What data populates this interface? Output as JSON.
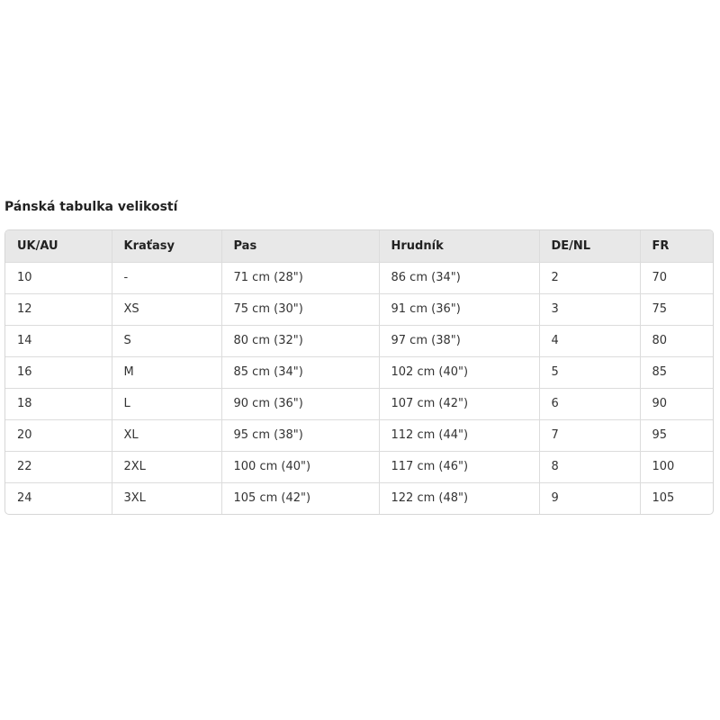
{
  "title": "Pánská tabulka velikostí",
  "headers": [
    "UK/AU",
    "Kraťasy",
    "Pas",
    "Hrudník",
    "DE/NL",
    "FR"
  ],
  "rows": [
    [
      "10",
      "-",
      "71 cm (28\")",
      "86 cm (34\")",
      "2",
      "70"
    ],
    [
      "12",
      "XS",
      "75 cm (30\")",
      "91 cm (36\")",
      "3",
      "75"
    ],
    [
      "14",
      "S",
      "80 cm (32\")",
      "97 cm (38\")",
      "4",
      "80"
    ],
    [
      "16",
      "M",
      "85 cm (34\")",
      "102 cm (40\")",
      "5",
      "85"
    ],
    [
      "18",
      "L",
      "90 cm (36\")",
      "107 cm (42\")",
      "6",
      "90"
    ],
    [
      "20",
      "XL",
      "95 cm (38\")",
      "112 cm (44\")",
      "7",
      "95"
    ],
    [
      "22",
      "2XL",
      "100 cm (40\")",
      "117 cm (46\")",
      "8",
      "100"
    ],
    [
      "24",
      "3XL",
      "105 cm (42\")",
      "122 cm (48\")",
      "9",
      "105"
    ]
  ]
}
